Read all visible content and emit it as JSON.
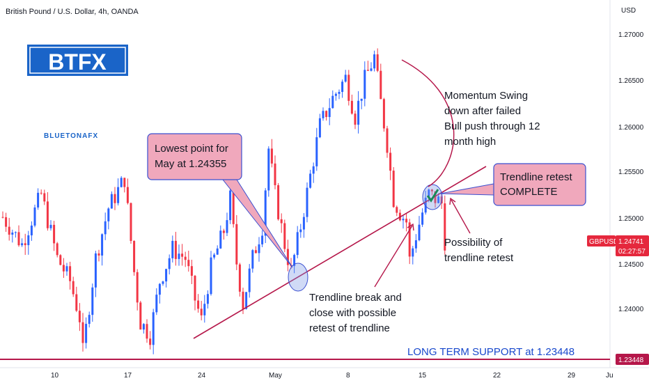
{
  "header": {
    "title": "British Pound / U.S. Dollar, 4h, OANDA",
    "currency": "USD"
  },
  "logos": {
    "btfx": "BTFX",
    "bluetona": "BLUETONAFX"
  },
  "annotations": {
    "lowest_box": [
      "Lowest point for",
      "May at 1.24355"
    ],
    "momentum": [
      "Momentum Swing",
      "down after failed",
      "Bull push through 12",
      "month high"
    ],
    "retest_complete_box": [
      "Trendline retest",
      "COMPLETE"
    ],
    "possibility": [
      "Possibility of",
      "trendline retest"
    ],
    "trendline_break": [
      "Trendline break and",
      "close with possible",
      "retest of trendline"
    ],
    "long_term_support": "LONG TERM SUPPORT at 1.23448"
  },
  "price_tags": {
    "symbol": "GBPUSD",
    "last_price": "1.24741",
    "countdown": "02:27:57",
    "support_price": "1.23448"
  },
  "colors": {
    "bull": "#2962ff",
    "bear": "#f23645",
    "annotation_line": "#b5174a",
    "box_fill": "#f0a8bc",
    "box_border": "#3a4fd0",
    "support_text": "#1848cc",
    "tag_red": "#e5283d",
    "logo_blue": "#1a64c8"
  },
  "chart_data": {
    "type": "candlestick",
    "instrument": "British Pound / U.S. Dollar, 4h, OANDA",
    "ylabel": "USD",
    "ylim": [
      1.2335,
      1.2725
    ],
    "y_ticks": [
      "1.27000",
      "1.26500",
      "1.26000",
      "1.25500",
      "1.25000",
      "1.24500",
      "1.24000"
    ],
    "x_ticks": [
      "10",
      "17",
      "24",
      "May",
      "8",
      "15",
      "22",
      "29",
      "Ju"
    ],
    "ohlc_path": [
      [
        0,
        1.25
      ],
      [
        6,
        1.247
      ],
      [
        12,
        1.2525
      ],
      [
        17,
        1.2455
      ],
      [
        21,
        1.243
      ],
      [
        24,
        1.239
      ],
      [
        25,
        1.2352
      ],
      [
        29,
        1.2455
      ],
      [
        33,
        1.251
      ],
      [
        38,
        1.2542
      ],
      [
        41,
        1.244
      ],
      [
        43,
        1.2385
      ],
      [
        46,
        1.2371
      ],
      [
        49,
        1.243
      ],
      [
        53,
        1.2465
      ],
      [
        57,
        1.2455
      ],
      [
        60,
        1.241
      ],
      [
        62,
        1.2387
      ],
      [
        65,
        1.2445
      ],
      [
        69,
        1.2485
      ],
      [
        71,
        1.252
      ],
      [
        73,
        1.245
      ],
      [
        75,
        1.2405
      ],
      [
        78,
        1.2455
      ],
      [
        81,
        1.249
      ],
      [
        83,
        1.2575
      ],
      [
        85,
        1.2525
      ],
      [
        88,
        1.247
      ],
      [
        90,
        1.244
      ],
      [
        93,
        1.249
      ],
      [
        96,
        1.2545
      ],
      [
        99,
        1.26
      ],
      [
        103,
        1.263
      ],
      [
        107,
        1.2652
      ],
      [
        110,
        1.261
      ],
      [
        113,
        1.265
      ],
      [
        116,
        1.2675
      ],
      [
        118,
        1.2625
      ],
      [
        120,
        1.258
      ],
      [
        122,
        1.252
      ],
      [
        124,
        1.2505
      ],
      [
        126,
        1.2495
      ],
      [
        127,
        1.2453
      ],
      [
        129,
        1.248
      ],
      [
        131,
        1.2505
      ],
      [
        133,
        1.2525
      ],
      [
        135,
        1.252
      ],
      [
        137,
        1.2515
      ],
      [
        138,
        1.2474
      ]
    ],
    "lines": {
      "trendline": {
        "from": [
          45,
          1.2369
        ],
        "to": [
          150,
          1.2556
        ]
      },
      "long_term_support": 1.23448
    },
    "last_price": 1.24741,
    "support_level": 1.23448,
    "lowest_point_may": 1.24355,
    "grid": false,
    "legend": "none"
  }
}
